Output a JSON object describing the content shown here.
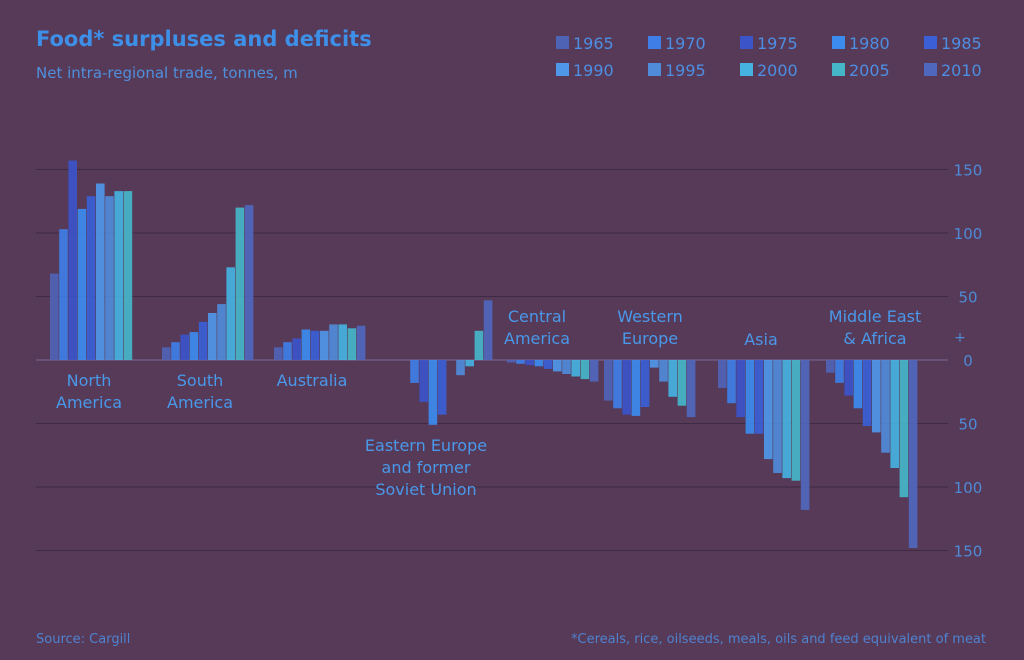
{
  "chart_data": {
    "type": "bar",
    "title": "Food* surpluses and deficits",
    "subtitle": "Net intra-regional trade, tonnes, m",
    "source": "Source: Cargill",
    "footnote": "*Cereals, rice, oilseeds, meals, oils and feed equivalent of meat",
    "axis_sign_label": "+",
    "ylim": [
      -150,
      150
    ],
    "yticks": [
      {
        "value": 150,
        "label": "150"
      },
      {
        "value": 100,
        "label": "100"
      },
      {
        "value": 50,
        "label": "50"
      },
      {
        "value": 0,
        "label": "0"
      },
      {
        "value": -50,
        "label": "50"
      },
      {
        "value": -100,
        "label": "100"
      },
      {
        "value": -150,
        "label": "150"
      }
    ],
    "grid": true,
    "legend_position": "top-right",
    "years": [
      "1965",
      "1970",
      "1975",
      "1980",
      "1985",
      "1990",
      "1995",
      "2000",
      "2005",
      "2010"
    ],
    "year_colors": [
      "#4f63b5",
      "#3f7ee6",
      "#3b55c9",
      "#3c8bef",
      "#3a5fd6",
      "#4f97e8",
      "#4f8bd8",
      "#45b2e0",
      "#45b6c8",
      "#4f67bd"
    ],
    "categories": [
      {
        "label": "North America",
        "values": [
          68,
          103,
          157,
          119,
          129,
          139,
          129,
          133,
          133,
          0
        ]
      },
      {
        "label": "South America",
        "values": [
          10,
          14,
          20,
          22,
          30,
          37,
          44,
          73,
          120,
          122
        ]
      },
      {
        "label": "Australia",
        "values": [
          10,
          14,
          17,
          24,
          23,
          23,
          28,
          28,
          25,
          27
        ]
      },
      {
        "label": "Eastern Europe and former Soviet Union",
        "values": [
          0,
          -18,
          -33,
          -51,
          -43,
          0,
          -12,
          -5,
          23,
          47
        ]
      },
      {
        "label": "Central America",
        "values": [
          -2,
          -3,
          -4,
          -5,
          -7,
          -9,
          -11,
          -13,
          -15,
          -17
        ]
      },
      {
        "label": "Western Europe",
        "values": [
          -32,
          -38,
          -43,
          -44,
          -37,
          -6,
          -17,
          -29,
          -36,
          -45
        ]
      },
      {
        "label": "Asia",
        "values": [
          -22,
          -34,
          -45,
          -58,
          -58,
          -78,
          -89,
          -93,
          -95,
          -118
        ]
      },
      {
        "label": "Middle East & Africa",
        "values": [
          -10,
          -18,
          -28,
          -38,
          -52,
          -57,
          -73,
          -85,
          -108,
          -148
        ]
      }
    ]
  }
}
